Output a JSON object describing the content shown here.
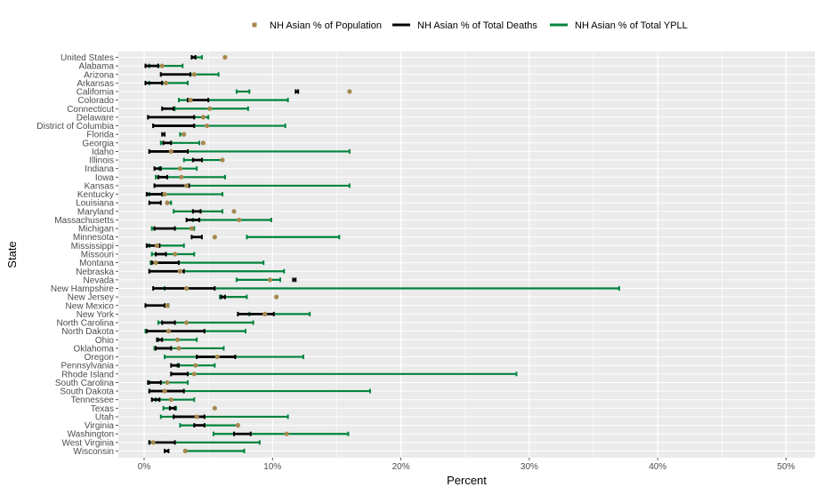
{
  "chart_data": {
    "type": "error-bar",
    "xlabel": "Percent",
    "ylabel": "State",
    "xlim": [
      -0.025,
      0.525
    ],
    "x_ticks": [
      {
        "value": 0,
        "label": "0%"
      },
      {
        "value": 0.1,
        "label": "10%"
      },
      {
        "value": 0.2,
        "label": "20%"
      },
      {
        "value": 0.3,
        "label": "30%"
      },
      {
        "value": 0.4,
        "label": "40%"
      },
      {
        "value": 0.5,
        "label": "50%"
      }
    ],
    "grid": true,
    "legend_position": "top",
    "legend": [
      {
        "key": "pop",
        "label": "NH Asian % of Population"
      },
      {
        "key": "deaths",
        "label": "NH Asian % of Total Deaths"
      },
      {
        "key": "yll",
        "label": "NH Asian % of Total YPLL"
      }
    ],
    "colors": {
      "pop": "#a6894f",
      "deaths": "#000000",
      "yll": "#00843d",
      "panel": "#ebebeb",
      "grid": "#ffffff"
    },
    "rows": [
      {
        "state": "United States",
        "pop": 0.063,
        "deaths": [
          0.037,
          0.04
        ],
        "yll": [
          0.04,
          0.045
        ]
      },
      {
        "state": "Alabama",
        "pop": 0.014,
        "deaths": [
          0.001,
          0.011
        ],
        "yll": [
          0.004,
          0.03
        ]
      },
      {
        "state": "Arizona",
        "pop": 0.039,
        "deaths": [
          0.013,
          0.036
        ],
        "yll": [
          0.013,
          0.058
        ]
      },
      {
        "state": "Arkansas",
        "pop": 0.017,
        "deaths": [
          0.001,
          0.014
        ],
        "yll": [
          0.004,
          0.034
        ]
      },
      {
        "state": "California",
        "pop": 0.16,
        "deaths": [
          0.118,
          0.12
        ],
        "yll": [
          0.072,
          0.082
        ]
      },
      {
        "state": "Colorado",
        "pop": 0.036,
        "deaths": [
          0.034,
          0.05
        ],
        "yll": [
          0.027,
          0.112
        ]
      },
      {
        "state": "Connecticut",
        "pop": 0.051,
        "deaths": [
          0.014,
          0.023
        ],
        "yll": [
          0.024,
          0.081
        ]
      },
      {
        "state": "Delaware",
        "pop": 0.046,
        "deaths": [
          0.003,
          0.039
        ],
        "yll": [
          0.003,
          0.05
        ]
      },
      {
        "state": "District of Columbia",
        "pop": 0.049,
        "deaths": [
          0.007,
          0.039
        ],
        "yll": [
          0.007,
          0.11
        ]
      },
      {
        "state": "Florida",
        "pop": 0.031,
        "deaths": [
          0.014,
          0.016
        ],
        "yll": [
          0.028,
          0.031
        ]
      },
      {
        "state": "Georgia",
        "pop": 0.046,
        "deaths": [
          0.015,
          0.021
        ],
        "yll": [
          0.013,
          0.043
        ]
      },
      {
        "state": "Idaho",
        "pop": 0.021,
        "deaths": [
          0.004,
          0.034
        ],
        "yll": [
          0.004,
          0.16
        ]
      },
      {
        "state": "Illinois",
        "pop": 0.061,
        "deaths": [
          0.038,
          0.045
        ],
        "yll": [
          0.031,
          0.061
        ]
      },
      {
        "state": "Indiana",
        "pop": 0.028,
        "deaths": [
          0.008,
          0.013
        ],
        "yll": [
          0.012,
          0.041
        ]
      },
      {
        "state": "Iowa",
        "pop": 0.029,
        "deaths": [
          0.011,
          0.018
        ],
        "yll": [
          0.009,
          0.063
        ]
      },
      {
        "state": "Kansas",
        "pop": 0.033,
        "deaths": [
          0.008,
          0.035
        ],
        "yll": [
          0.008,
          0.16
        ]
      },
      {
        "state": "Kentucky",
        "pop": 0.016,
        "deaths": [
          0.002,
          0.014
        ],
        "yll": [
          0.004,
          0.061
        ]
      },
      {
        "state": "Louisiana",
        "pop": 0.018,
        "deaths": [
          0.004,
          0.013
        ],
        "yll": [
          0.018,
          0.021
        ]
      },
      {
        "state": "Maryland",
        "pop": 0.07,
        "deaths": [
          0.038,
          0.044
        ],
        "yll": [
          0.023,
          0.061
        ]
      },
      {
        "state": "Massachusetts",
        "pop": 0.074,
        "deaths": [
          0.033,
          0.043
        ],
        "yll": [
          0.038,
          0.099
        ]
      },
      {
        "state": "Michigan",
        "pop": 0.037,
        "deaths": [
          0.008,
          0.024
        ],
        "yll": [
          0.006,
          0.039
        ]
      },
      {
        "state": "Minnesota",
        "pop": 0.055,
        "deaths": [
          0.037,
          0.045
        ],
        "yll": [
          0.08,
          0.152
        ]
      },
      {
        "state": "Mississippi",
        "pop": 0.01,
        "deaths": [
          0.002,
          0.012
        ],
        "yll": [
          0.004,
          0.031
        ]
      },
      {
        "state": "Missouri",
        "pop": 0.024,
        "deaths": [
          0.009,
          0.017
        ],
        "yll": [
          0.006,
          0.039
        ]
      },
      {
        "state": "Montana",
        "pop": 0.009,
        "deaths": [
          0.006,
          0.027
        ],
        "yll": [
          0.005,
          0.093
        ]
      },
      {
        "state": "Nebraska",
        "pop": 0.028,
        "deaths": [
          0.004,
          0.031
        ],
        "yll": [
          0.004,
          0.109
        ]
      },
      {
        "state": "Nevada",
        "pop": 0.098,
        "deaths": [
          0.116,
          0.118
        ],
        "yll": [
          0.072,
          0.106
        ]
      },
      {
        "state": "New Hampshire",
        "pop": 0.033,
        "deaths": [
          0.007,
          0.055
        ],
        "yll": [
          0.016,
          0.37
        ]
      },
      {
        "state": "New Jersey",
        "pop": 0.103,
        "deaths": [
          0.06,
          0.063
        ],
        "yll": [
          0.059,
          0.08
        ]
      },
      {
        "state": "New Mexico",
        "pop": 0.018,
        "deaths": [
          0.001,
          0.016
        ],
        "yll": [
          0.001,
          0.019
        ]
      },
      {
        "state": "New York",
        "pop": 0.094,
        "deaths": [
          0.073,
          0.101
        ],
        "yll": [
          0.082,
          0.129
        ]
      },
      {
        "state": "North Carolina",
        "pop": 0.033,
        "deaths": [
          0.014,
          0.024
        ],
        "yll": [
          0.011,
          0.085
        ]
      },
      {
        "state": "North Dakota",
        "pop": 0.019,
        "deaths": [
          0.002,
          0.047
        ],
        "yll": [
          0.001,
          0.079
        ]
      },
      {
        "state": "Ohio",
        "pop": 0.026,
        "deaths": [
          0.01,
          0.014
        ],
        "yll": [
          0.011,
          0.041
        ]
      },
      {
        "state": "Oklahoma",
        "pop": 0.027,
        "deaths": [
          0.009,
          0.021
        ],
        "yll": [
          0.008,
          0.062
        ]
      },
      {
        "state": "Oregon",
        "pop": 0.057,
        "deaths": [
          0.041,
          0.071
        ],
        "yll": [
          0.016,
          0.124
        ]
      },
      {
        "state": "Pennsylvania",
        "pop": 0.04,
        "deaths": [
          0.021,
          0.027
        ],
        "yll": [
          0.026,
          0.055
        ]
      },
      {
        "state": "Rhode Island",
        "pop": 0.039,
        "deaths": [
          0.021,
          0.034
        ],
        "yll": [
          0.021,
          0.29
        ]
      },
      {
        "state": "South Carolina",
        "pop": 0.018,
        "deaths": [
          0.003,
          0.013
        ],
        "yll": [
          0.004,
          0.034
        ]
      },
      {
        "state": "South Dakota",
        "pop": 0.016,
        "deaths": [
          0.004,
          0.031
        ],
        "yll": [
          0.004,
          0.176
        ]
      },
      {
        "state": "Tennessee",
        "pop": 0.021,
        "deaths": [
          0.006,
          0.012
        ],
        "yll": [
          0.009,
          0.039
        ]
      },
      {
        "state": "Texas",
        "pop": 0.055,
        "deaths": [
          0.02,
          0.024
        ],
        "yll": [
          0.015,
          0.025
        ]
      },
      {
        "state": "Utah",
        "pop": 0.041,
        "deaths": [
          0.023,
          0.047
        ],
        "yll": [
          0.013,
          0.112
        ]
      },
      {
        "state": "Virginia",
        "pop": 0.073,
        "deaths": [
          0.039,
          0.047
        ],
        "yll": [
          0.028,
          0.073
        ]
      },
      {
        "state": "Washington",
        "pop": 0.111,
        "deaths": [
          0.07,
          0.083
        ],
        "yll": [
          0.054,
          0.159
        ]
      },
      {
        "state": "West Virginia",
        "pop": 0.007,
        "deaths": [
          0.004,
          0.024
        ],
        "yll": [
          0.004,
          0.09
        ]
      },
      {
        "state": "Wisconsin",
        "pop": 0.032,
        "deaths": [
          0.016,
          0.019
        ],
        "yll": [
          0.032,
          0.078
        ]
      }
    ]
  }
}
